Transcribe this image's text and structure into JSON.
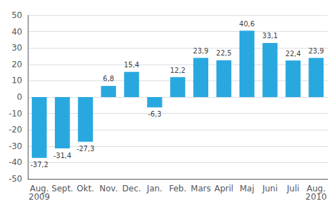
{
  "chart_data": {
    "type": "bar",
    "categories": [
      "Aug.",
      "Sept.",
      "Okt.",
      "Nov.",
      "Dec.",
      "Jan.",
      "Feb.",
      "Mars",
      "April",
      "Maj",
      "Juni",
      "Juli",
      "Aug."
    ],
    "values": [
      -37.2,
      -31.4,
      -27.3,
      6.8,
      15.4,
      -6.3,
      12.2,
      23.9,
      22.5,
      40.6,
      33.1,
      22.4,
      23.9
    ],
    "value_labels": [
      "-37,2",
      "-31,4",
      "-27,3",
      "6,8",
      "15,4",
      "-6,3",
      "12,2",
      "23,9",
      "22,5",
      "40,6",
      "33,1",
      "22,4",
      "23,9"
    ],
    "data_labels": true,
    "color": "#29a8e0",
    "ylim": [
      -50,
      50
    ],
    "yticks": [
      -50,
      -40,
      -30,
      -20,
      -10,
      0,
      10,
      20,
      30,
      40,
      50
    ],
    "grid": true,
    "annotations": [
      {
        "text": "2009",
        "x": 0
      },
      {
        "text": "2010",
        "x": 12
      }
    ]
  }
}
